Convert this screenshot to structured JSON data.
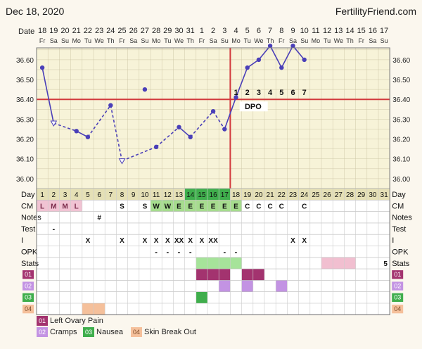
{
  "header": {
    "date": "Dec 18, 2020",
    "site": "FertilityFriend.com"
  },
  "date_axis": {
    "label": "Date",
    "dates": [
      "18",
      "19",
      "20",
      "21",
      "22",
      "23",
      "24",
      "25",
      "26",
      "27",
      "28",
      "29",
      "30",
      "31",
      "1",
      "2",
      "3",
      "4",
      "5",
      "6",
      "7",
      "8",
      "9",
      "10",
      "11",
      "12",
      "13",
      "14",
      "15",
      "16",
      "17"
    ],
    "weekdays": [
      "Fr",
      "Sa",
      "Su",
      "Mo",
      "Tu",
      "We",
      "Th",
      "Fr",
      "Sa",
      "Su",
      "Mo",
      "Tu",
      "We",
      "Th",
      "Fr",
      "Sa",
      "Su",
      "Mo",
      "Tu",
      "We",
      "Th",
      "Fr",
      "Sa",
      "Su",
      "Mo",
      "Tu",
      "We",
      "Th",
      "Fr",
      "Sa",
      "Su"
    ]
  },
  "chart_data": {
    "type": "line",
    "y_ticks": [
      "36.60",
      "36.50",
      "36.40",
      "36.30",
      "36.20",
      "36.10",
      "36.00"
    ],
    "ylim": [
      35.95,
      36.66
    ],
    "coverline": 36.4,
    "ovulation_day": 17,
    "temps": [
      36.56,
      36.28,
      null,
      36.24,
      36.21,
      null,
      36.37,
      36.09,
      null,
      36.45,
      36.16,
      null,
      36.26,
      36.21,
      null,
      36.34,
      36.25,
      36.41,
      36.56,
      36.6,
      36.67,
      36.56,
      36.67,
      36.6,
      null,
      null,
      null,
      null,
      null,
      null,
      null
    ],
    "open_markers": [
      2,
      8
    ],
    "dashed_segments": [
      [
        2,
        4
      ],
      [
        5,
        7
      ],
      [
        7,
        8
      ],
      [
        8,
        11
      ],
      [
        11,
        13
      ],
      [
        14,
        16
      ],
      [
        16,
        17
      ]
    ],
    "dpo_label": "DPO",
    "dpo": [
      "1",
      "2",
      "3",
      "4",
      "5",
      "6",
      "7"
    ]
  },
  "grid": {
    "row_labels": [
      "Day",
      "CM",
      "Notes",
      "Test",
      "I",
      "OPK",
      "Stats",
      "01",
      "02",
      "03",
      "04"
    ],
    "days": [
      "1",
      "2",
      "3",
      "4",
      "5",
      "6",
      "7",
      "8",
      "9",
      "10",
      "11",
      "12",
      "13",
      "14",
      "15",
      "16",
      "17",
      "18",
      "19",
      "20",
      "21",
      "22",
      "23",
      "24",
      "25",
      "26",
      "27",
      "28",
      "29",
      "30",
      "31"
    ],
    "cm": [
      "L",
      "M",
      "M",
      "L",
      "",
      "",
      "",
      "S",
      "",
      "S",
      "W",
      "W",
      "E",
      "E",
      "E",
      "E",
      "E",
      "E",
      "C",
      "C",
      "C",
      "C",
      "",
      "C",
      "",
      "",
      "",
      "",
      "",
      "",
      ""
    ],
    "notes": [
      "",
      "",
      "",
      "",
      "",
      "#",
      "",
      "",
      "",
      "",
      "",
      "",
      "",
      "",
      "",
      "",
      "",
      "",
      "",
      "",
      "",
      "",
      "",
      "",
      "",
      "",
      "",
      "",
      "",
      "",
      ""
    ],
    "test": [
      "",
      "-",
      "",
      "",
      "",
      "",
      "",
      "",
      "",
      "",
      "",
      "",
      "",
      "",
      "",
      "",
      "",
      "",
      "",
      "",
      "",
      "",
      "",
      "",
      "",
      "",
      "",
      "",
      "",
      "",
      ""
    ],
    "intercourse": [
      "",
      "",
      "",
      "",
      "X",
      "",
      "",
      "X",
      "",
      "X",
      "X",
      "X",
      "XX",
      "X",
      "X",
      "XX",
      "",
      "",
      "",
      "",
      "",
      "",
      "X",
      "X",
      "",
      "",
      "",
      "",
      "",
      "",
      ""
    ],
    "opk": [
      "",
      "",
      "",
      "",
      "",
      "",
      "",
      "",
      "",
      "",
      "-",
      "-",
      "-",
      "-",
      "+",
      "+",
      "-",
      "-",
      "",
      "",
      "",
      "",
      "",
      "",
      "",
      "",
      "",
      "",
      "",
      "",
      ""
    ],
    "stats_value": "5"
  },
  "symptoms": {
    "legend": [
      {
        "code": "01",
        "name": "Left Ovary Pain",
        "color": "#a3336f"
      },
      {
        "code": "02",
        "name": "Cramps",
        "color": "#c393e3"
      },
      {
        "code": "03",
        "name": "Nausea",
        "color": "#3fae4c"
      },
      {
        "code": "04",
        "name": "Skin Break Out",
        "color": "#f5c09b"
      }
    ],
    "rows": [
      [
        15,
        16,
        17,
        19,
        20
      ],
      [
        17,
        19,
        22
      ],
      [
        15
      ],
      [
        5,
        6
      ]
    ]
  },
  "colors": {
    "grid_bg": "#f7f3d8",
    "line": "#4a3fb8",
    "coverline": "#d2393c",
    "day_green": "#3fae4c",
    "cm_pink": "#f1c3d3",
    "cm_green": "#a6dc8e",
    "stats_green": "#a6e39a",
    "stats_pink": "#f1bfd0"
  }
}
